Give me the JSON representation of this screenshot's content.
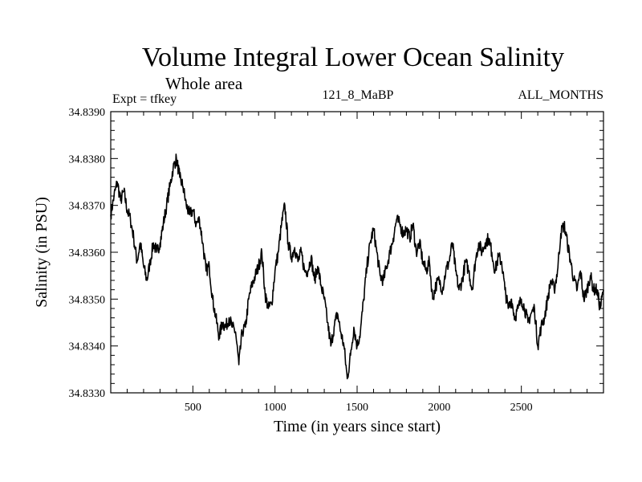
{
  "chart_data": {
    "type": "line",
    "title": "Volume Integral Lower Ocean Salinity",
    "subtitle": "Whole area",
    "annotations": {
      "left": "Expt = tfkey",
      "center": "121_8_MaBP",
      "right": "ALL_MONTHS"
    },
    "xlabel": "Time (in years since start)",
    "ylabel": "Salinity (in PSU)",
    "xlim": [
      0,
      3000
    ],
    "ylim": [
      34.833,
      34.839
    ],
    "xticks": [
      500,
      1000,
      1500,
      2000,
      2500
    ],
    "xtick_labels": [
      "500",
      "1000",
      "1500",
      "2000",
      "2500"
    ],
    "yticks": [
      34.833,
      34.834,
      34.835,
      34.836,
      34.837,
      34.838,
      34.839
    ],
    "ytick_labels": [
      "34.8330",
      "34.8340",
      "34.8350",
      "34.8360",
      "34.8370",
      "34.8380",
      "34.8390"
    ],
    "grid": false,
    "line_color": "#000000",
    "series": [
      {
        "x": [
          0,
          20,
          40,
          60,
          80,
          100,
          120,
          140,
          160,
          180,
          200,
          220,
          240,
          260,
          280,
          300,
          320,
          340,
          360,
          380,
          400,
          420,
          440,
          460,
          480,
          500,
          520,
          540,
          560,
          580,
          600,
          620,
          640,
          660,
          680,
          700,
          720,
          740,
          760,
          780,
          800,
          820,
          840,
          860,
          880,
          900,
          920,
          940,
          960,
          980,
          1000,
          1020,
          1040,
          1060,
          1080,
          1100,
          1120,
          1140,
          1160,
          1180,
          1200,
          1220,
          1240,
          1260,
          1280,
          1300,
          1320,
          1340,
          1360,
          1380,
          1400,
          1420,
          1440,
          1460,
          1480,
          1500,
          1520,
          1540,
          1560,
          1580,
          1600,
          1620,
          1640,
          1660,
          1680,
          1700,
          1720,
          1740,
          1760,
          1780,
          1800,
          1820,
          1840,
          1860,
          1880,
          1900,
          1920,
          1940,
          1960,
          1980,
          2000,
          2020,
          2040,
          2060,
          2080,
          2100,
          2120,
          2140,
          2160,
          2180,
          2200,
          2220,
          2240,
          2260,
          2280,
          2300,
          2320,
          2340,
          2360,
          2380,
          2400,
          2420,
          2440,
          2460,
          2480,
          2500,
          2520,
          2540,
          2560,
          2580,
          2600,
          2620,
          2640,
          2660,
          2680,
          2700,
          2720,
          2740,
          2760,
          2780,
          2800,
          2820,
          2840,
          2860,
          2880,
          2900,
          2920,
          2940,
          2960,
          2980,
          3000
        ],
        "y": [
          34.8368,
          34.8372,
          34.8375,
          34.8371,
          34.8373,
          34.8369,
          34.8367,
          34.8363,
          34.8358,
          34.8362,
          34.8357,
          34.8354,
          34.8358,
          34.8362,
          34.836,
          34.8362,
          34.8366,
          34.837,
          34.8374,
          34.8378,
          34.838,
          34.8376,
          34.8374,
          34.837,
          34.8368,
          34.8369,
          34.8366,
          34.8367,
          34.8362,
          34.8356,
          34.8357,
          34.835,
          34.8346,
          34.8342,
          34.8345,
          34.8344,
          34.8346,
          34.8344,
          34.8343,
          34.8336,
          34.8343,
          34.8344,
          34.835,
          34.8353,
          34.8355,
          34.8357,
          34.836,
          34.8351,
          34.8348,
          34.8349,
          34.8356,
          34.836,
          34.8366,
          34.837,
          34.8362,
          34.8359,
          34.8361,
          34.8358,
          34.836,
          34.8356,
          34.8356,
          34.8359,
          34.8354,
          34.8357,
          34.8353,
          34.835,
          34.8345,
          34.834,
          34.8344,
          34.8347,
          34.8343,
          34.834,
          34.8333,
          34.8338,
          34.8344,
          34.834,
          34.8343,
          34.835,
          34.8357,
          34.8362,
          34.8365,
          34.836,
          34.8355,
          34.8354,
          34.8357,
          34.836,
          34.8363,
          34.8367,
          34.8366,
          34.8364,
          34.8365,
          34.8363,
          34.8366,
          34.836,
          34.8362,
          34.8358,
          34.8356,
          34.8358,
          34.835,
          34.8353,
          34.8354,
          34.8352,
          34.8356,
          34.8358,
          34.8362,
          34.8356,
          34.8352,
          34.8354,
          34.8358,
          34.8356,
          34.8352,
          34.8358,
          34.8362,
          34.836,
          34.8362,
          34.8363,
          34.836,
          34.8356,
          34.8359,
          34.8358,
          34.8352,
          34.8348,
          34.835,
          34.8346,
          34.8348,
          34.835,
          34.8348,
          34.8345,
          34.8347,
          34.8348,
          34.834,
          34.8344,
          34.8346,
          34.835,
          34.8354,
          34.8352,
          34.8356,
          34.8364,
          34.8366,
          34.8362,
          34.8358,
          34.8354,
          34.8352,
          34.8356,
          34.835,
          34.8352,
          34.8355,
          34.8352,
          34.8352,
          34.8348,
          34.8352
        ]
      }
    ]
  }
}
